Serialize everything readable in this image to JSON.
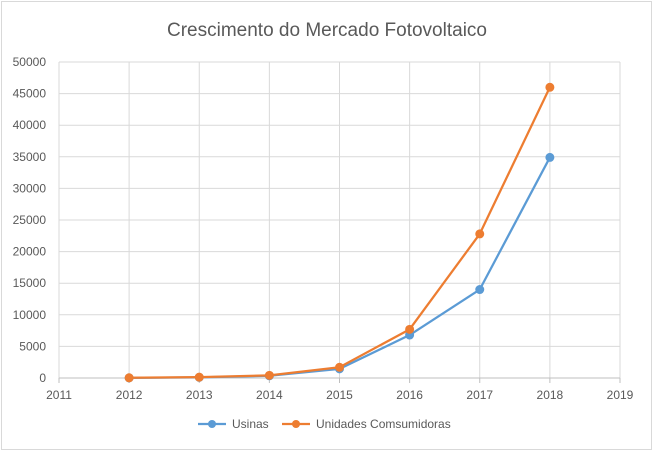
{
  "chart_data": {
    "type": "scatter",
    "title": "Crescimento do Mercado Fotovoltaico",
    "xlabel": "",
    "ylabel": "",
    "xlim": [
      2011,
      2019
    ],
    "ylim": [
      0,
      50000
    ],
    "x_ticks": [
      "2011",
      "2012",
      "2013",
      "2014",
      "2015",
      "2016",
      "2017",
      "2018",
      "2019"
    ],
    "y_ticks": [
      "0",
      "5000",
      "10000",
      "15000",
      "20000",
      "25000",
      "30000",
      "35000",
      "40000",
      "45000",
      "50000"
    ],
    "grid": true,
    "legend_position": "bottom",
    "series": [
      {
        "name": "Usinas",
        "color": "#5b9bd5",
        "x": [
          2012,
          2013,
          2014,
          2015,
          2016,
          2017,
          2018
        ],
        "values": [
          20,
          100,
          350,
          1450,
          6800,
          14000,
          34900
        ]
      },
      {
        "name": "Unidades Comsumidoras",
        "color": "#ed7d31",
        "x": [
          2012,
          2013,
          2014,
          2015,
          2016,
          2017,
          2018
        ],
        "values": [
          30,
          130,
          420,
          1700,
          7700,
          22800,
          46000
        ]
      }
    ]
  }
}
